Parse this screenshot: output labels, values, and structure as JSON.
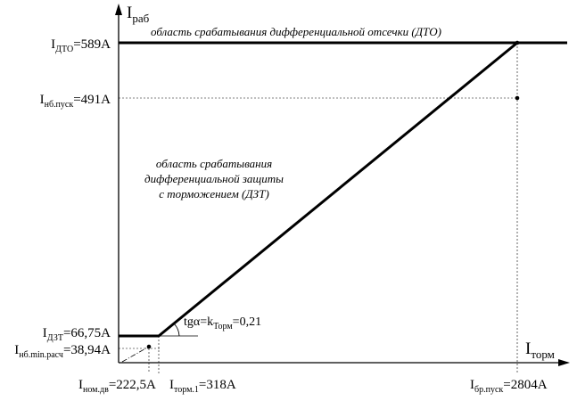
{
  "axes": {
    "y": {
      "main": "I",
      "sub": "раб"
    },
    "x": {
      "main": "I",
      "sub": "торм"
    }
  },
  "y_labels": {
    "dto": {
      "main": "I",
      "sub": "ДТО",
      "value": "=589A"
    },
    "nb_pusk": {
      "main": "I",
      "sub": "нб.пуск",
      "value": "=491A"
    },
    "dzt": {
      "main": "I",
      "sub": "ДЗТ",
      "value": "=66,75A"
    },
    "nb_min": {
      "main": "I",
      "sub": "нб.min.расч",
      "value": "=38,94A"
    }
  },
  "x_labels": {
    "nom": {
      "main": "I",
      "sub": "ном.дв",
      "value": "=222,5A"
    },
    "torm1": {
      "main": "I",
      "sub": "торм.1",
      "value": "=318A"
    },
    "br_pusk": {
      "main": "I",
      "sub": "бр.пуск",
      "value": "=2804A"
    }
  },
  "slope": {
    "prefix": "tgα=k",
    "sub": "Торм",
    "value": "=0,21"
  },
  "regions": {
    "dto_text": "область срабатывания дифференциальной отсечки (ДТО)",
    "dzt_lines": [
      "область срабатывания",
      "дифференциальной защиты",
      "с торможением (ДЗТ)"
    ]
  },
  "values": {
    "I_dto": 589,
    "I_nb_pusk": 491,
    "I_dzt": 66.75,
    "I_nb_min": 38.94,
    "I_nom": 222.5,
    "I_torm1": 318,
    "I_br_pusk": 2804,
    "k_torm": 0.21
  }
}
